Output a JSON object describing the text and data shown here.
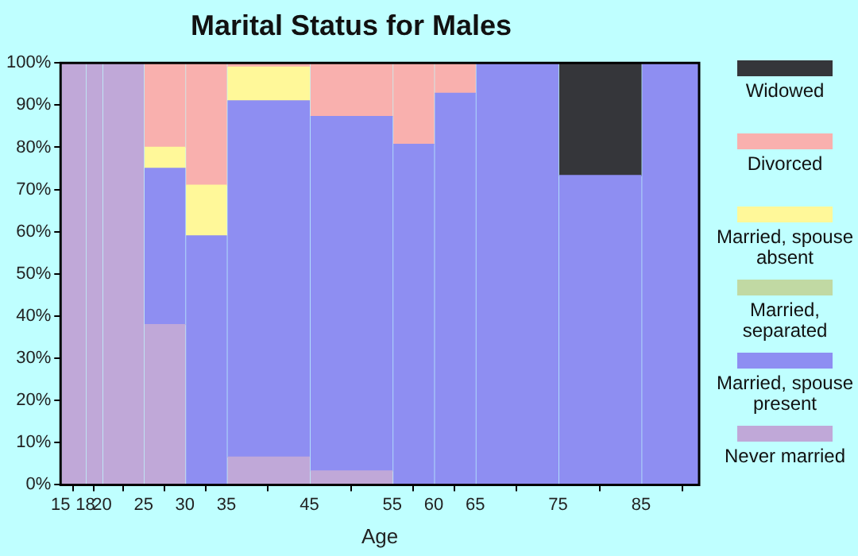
{
  "chart_data": {
    "type": "bar",
    "title": "Marital Status for Males",
    "xlabel": "Age",
    "stacked": true,
    "x": [
      16.5,
      19,
      22.5,
      27.5,
      32.5,
      40,
      50,
      57.5,
      62.5,
      70,
      80,
      88.5
    ],
    "xlim": [
      15,
      92
    ],
    "xticks": [
      15,
      18,
      20,
      25,
      30,
      35,
      45,
      55,
      60,
      65,
      75,
      85
    ],
    "ylim": [
      0,
      100
    ],
    "yticks": [
      {
        "value": 0,
        "label": "0%"
      },
      {
        "value": 10,
        "label": "10%"
      },
      {
        "value": 20,
        "label": "20%"
      },
      {
        "value": 30,
        "label": "30%"
      },
      {
        "value": 40,
        "label": "40%"
      },
      {
        "value": 50,
        "label": "50%"
      },
      {
        "value": 60,
        "label": "60%"
      },
      {
        "value": 70,
        "label": "70%"
      },
      {
        "value": 80,
        "label": "80%"
      },
      {
        "value": 90,
        "label": "90%"
      },
      {
        "value": 100,
        "label": "100%"
      }
    ],
    "grid": false,
    "legend": "right",
    "series": [
      {
        "name": "Never married",
        "color": "#c0a8d8",
        "values": [
          100,
          100,
          100,
          38,
          0,
          6.6,
          3.3,
          0,
          0,
          0,
          0,
          0
        ]
      },
      {
        "name": "Married, spouse present",
        "color": "#8e8ef2",
        "values": [
          0,
          0,
          0,
          37,
          59,
          84.4,
          84,
          80.7,
          92.8,
          100,
          73.3,
          100
        ]
      },
      {
        "name": "Married, separated",
        "color": "#c1d9a3",
        "values": [
          0,
          0,
          0,
          0,
          0,
          0,
          0,
          0,
          0,
          0,
          0,
          0
        ]
      },
      {
        "name": "Married, spouse absent",
        "color": "#fff899",
        "values": [
          0,
          0,
          0,
          5,
          12,
          8,
          0,
          0,
          0,
          0,
          0,
          0
        ]
      },
      {
        "name": "Divorced",
        "color": "#f9b0ae",
        "values": [
          0,
          0,
          0,
          20,
          29,
          1,
          12.7,
          19.3,
          7.2,
          0,
          0,
          0
        ]
      },
      {
        "name": "Widowed",
        "color": "#35363a",
        "values": [
          0,
          0,
          0,
          0,
          0,
          0,
          0,
          0,
          0,
          0,
          26.7,
          0
        ]
      }
    ]
  }
}
